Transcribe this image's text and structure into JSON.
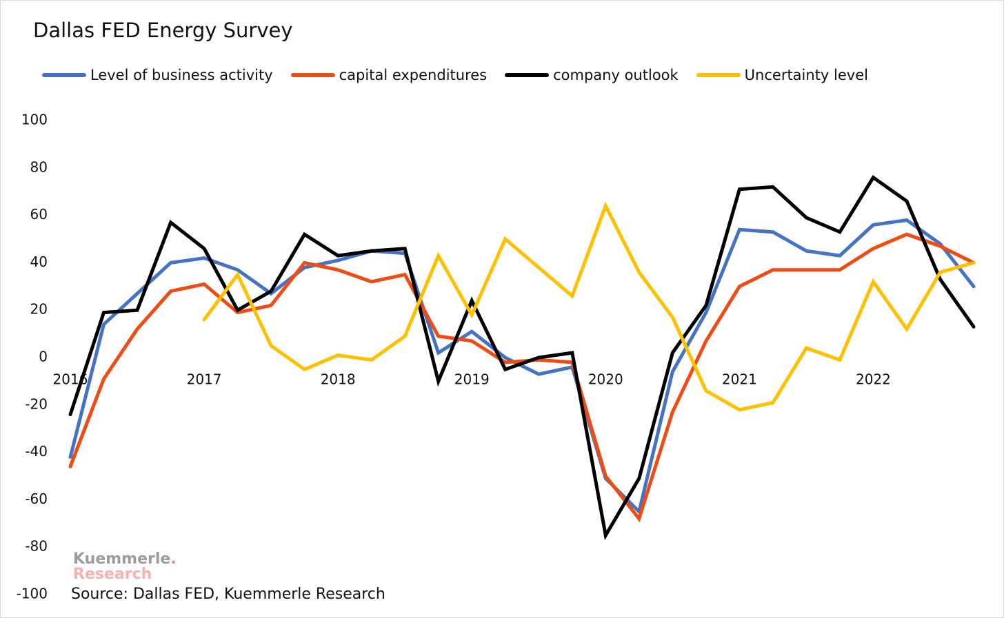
{
  "chart_data": {
    "type": "line",
    "title": "Dallas FED Energy Survey",
    "xlabel": "",
    "ylabel": "",
    "ylim": [
      -100,
      100
    ],
    "yticks": [
      100,
      80,
      60,
      40,
      20,
      0,
      -20,
      -40,
      -60,
      -80,
      -100
    ],
    "xlim": [
      2016,
      2022.75
    ],
    "xticks": [
      "2016",
      "2017",
      "2018",
      "2019",
      "2020",
      "2021",
      "2022"
    ],
    "legend_position": "top",
    "grid": false,
    "series": [
      {
        "name": "Level of business activity",
        "color": "#4472c4",
        "x": [
          2016,
          2016.25,
          2016.5,
          2016.75,
          2017,
          2017.25,
          2017.5,
          2017.75,
          2018,
          2018.25,
          2018.5,
          2018.75,
          2019,
          2019.25,
          2019.5,
          2019.75,
          2020,
          2020.25,
          2020.5,
          2020.75,
          2021,
          2021.25,
          2021.5,
          2021.75,
          2022,
          2022.25,
          2022.5,
          2022.75
        ],
        "y": [
          -42,
          14,
          27,
          40,
          42,
          37,
          27,
          38,
          41,
          45,
          44,
          2,
          11,
          0,
          -7,
          -4,
          -51,
          -65,
          -6,
          19,
          54,
          53,
          45,
          43,
          56,
          58,
          48,
          30
        ]
      },
      {
        "name": "capital expenditures",
        "color": "#f04b12",
        "x": [
          2016,
          2016.25,
          2016.5,
          2016.75,
          2017,
          2017.25,
          2017.5,
          2017.75,
          2018,
          2018.25,
          2018.5,
          2018.75,
          2019,
          2019.25,
          2019.5,
          2019.75,
          2020,
          2020.25,
          2020.5,
          2020.75,
          2021,
          2021.25,
          2021.5,
          2021.75,
          2022,
          2022.25,
          2022.5,
          2022.75
        ],
        "y": [
          -46,
          -9,
          12,
          28,
          31,
          19,
          22,
          40,
          37,
          32,
          35,
          9,
          7,
          -2,
          -1,
          -2,
          -50,
          -68,
          -23,
          7,
          30,
          37,
          37,
          37,
          46,
          52,
          47,
          40
        ]
      },
      {
        "name": "company outlook",
        "color": "#000000",
        "x": [
          2016,
          2016.25,
          2016.5,
          2016.75,
          2017,
          2017.25,
          2017.5,
          2017.75,
          2018,
          2018.25,
          2018.5,
          2018.75,
          2019,
          2019.25,
          2019.5,
          2019.75,
          2020,
          2020.25,
          2020.5,
          2020.75,
          2021,
          2021.25,
          2021.5,
          2021.75,
          2022,
          2022.25,
          2022.5,
          2022.75
        ],
        "y": [
          -24,
          19,
          20,
          57,
          46,
          20,
          28,
          52,
          43,
          45,
          46,
          -10,
          24,
          -5,
          0,
          2,
          -75,
          -51,
          2,
          22,
          71,
          72,
          59,
          53,
          76,
          66,
          33,
          13
        ]
      },
      {
        "name": "Uncertainty level",
        "color": "#ffc000",
        "x": [
          2017,
          2017.25,
          2017.5,
          2017.75,
          2018,
          2018.25,
          2018.5,
          2018.75,
          2019,
          2019.25,
          2019.5,
          2019.75,
          2020,
          2020.25,
          2020.5,
          2020.75,
          2021,
          2021.25,
          2021.5,
          2021.75,
          2022,
          2022.25,
          2022.5,
          2022.75
        ],
        "y": [
          16,
          35,
          5,
          -5,
          1,
          -1,
          9,
          43,
          18,
          50,
          38,
          26,
          64,
          36,
          17,
          -14,
          -22,
          -19,
          4,
          -1,
          32,
          12,
          36,
          40
        ]
      }
    ]
  },
  "source_text": "Source: Dallas FED, Kuemmerle Research",
  "logo": {
    "line1": "Kuemmerle",
    "dot": ".",
    "line2": "Research"
  }
}
